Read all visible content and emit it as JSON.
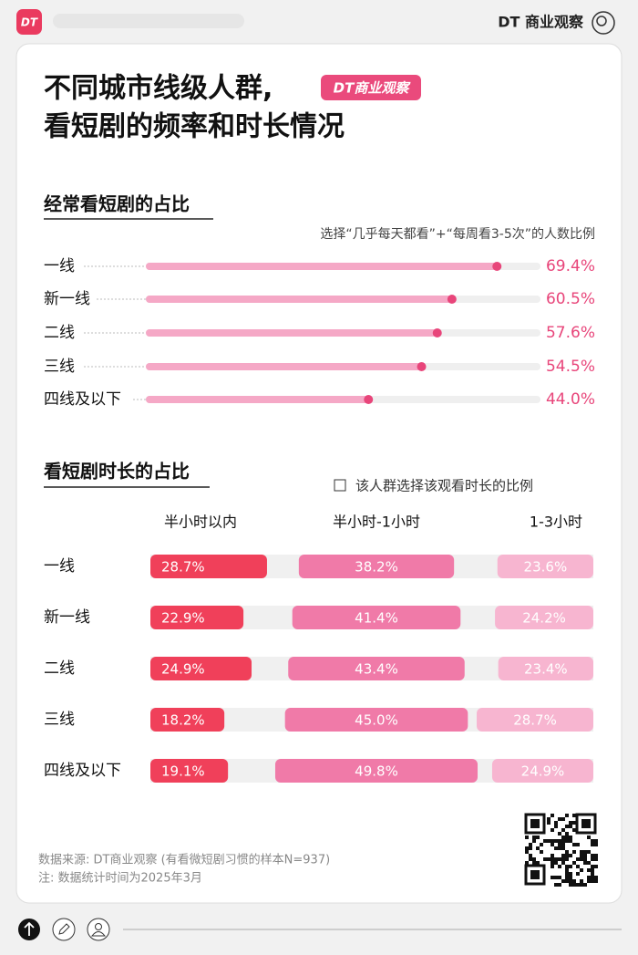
{
  "header": {
    "brand": "DT 商业观察",
    "title": [
      "不同城市线级人群,",
      "看短剧的频率和时长情况"
    ],
    "badge": "DT商业观察"
  },
  "chart_data": [
    {
      "type": "lollipop",
      "title": "经常看短剧的占比",
      "subtitle": "选择“几乎每天都看”+“每周看3-5次”的人数比例",
      "categories": [
        "一线",
        "新一线",
        "二线",
        "三线",
        "四线及以下"
      ],
      "values": [
        69.4,
        60.5,
        57.6,
        54.5,
        44.0
      ],
      "value_labels": [
        "69.4%",
        "60.5%",
        "57.6%",
        "54.5%",
        "44.0%"
      ],
      "color": "#e8457a",
      "xlim": [
        0,
        78
      ]
    },
    {
      "type": "segmented",
      "title": "看短剧时长的占比",
      "legend_note": "该人群选择该观看时长的比例",
      "categories": [
        "一线",
        "新一线",
        "二线",
        "三线",
        "四线及以下"
      ],
      "xlim": [
        0,
        109
      ],
      "series": [
        {
          "name": "半小时以内",
          "color": "#f0405a",
          "values": [
            28.7,
            22.9,
            24.9,
            18.2,
            19.1
          ],
          "value_labels": [
            "28.7%",
            "22.9%",
            "24.9%",
            "18.2%",
            "19.1%"
          ]
        },
        {
          "name": "半小时-1小时",
          "color": "#f07aa8",
          "values": [
            38.2,
            41.4,
            43.4,
            45.0,
            49.8
          ],
          "value_labels": [
            "38.2%",
            "41.4%",
            "43.4%",
            "45.0%",
            "49.8%"
          ]
        },
        {
          "name": "1-3小时",
          "color": "#f7b5d0",
          "values": [
            23.6,
            24.2,
            23.4,
            28.7,
            24.9
          ],
          "value_labels": [
            "23.6%",
            "24.2%",
            "23.4%",
            "28.7%",
            "24.9%"
          ]
        }
      ]
    }
  ],
  "footer": {
    "source": "数据来源: DT商业观察 (有看微短剧习惯的样本N=937)",
    "note": "注: 数据统计时间为2025年3月"
  }
}
